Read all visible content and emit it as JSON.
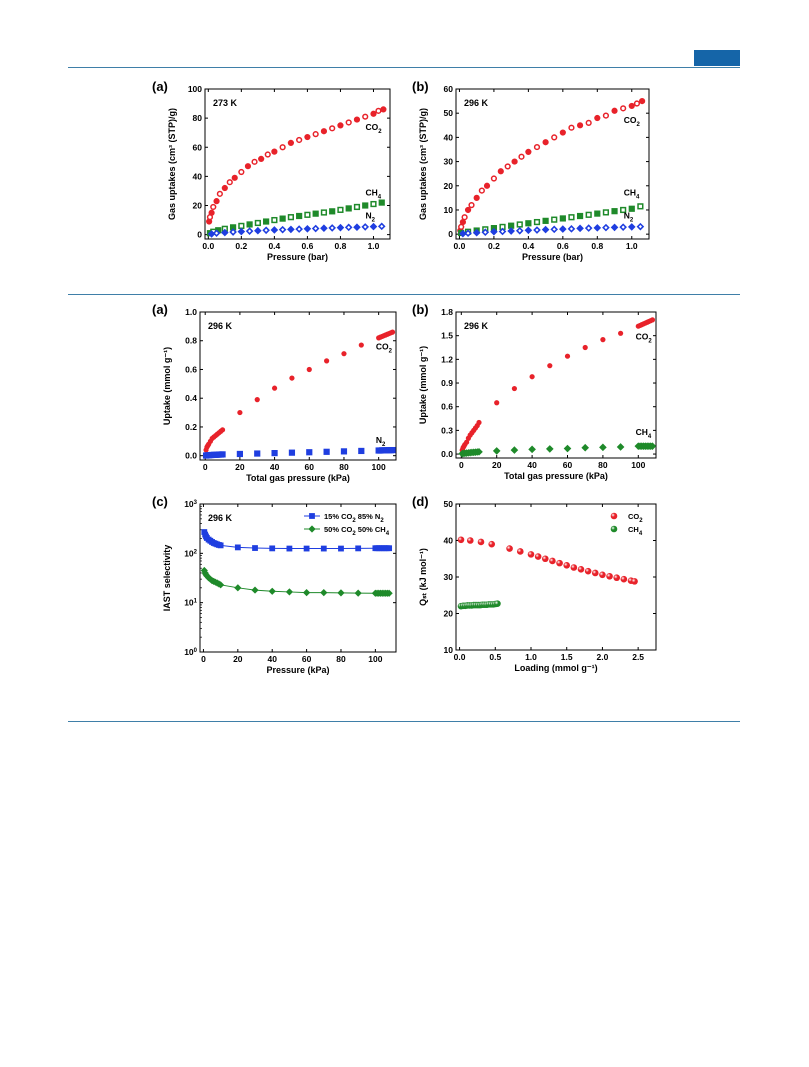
{
  "page": {
    "accent_color": "#1565a8",
    "rule_color": "#3f7fa8"
  },
  "colors": {
    "co2": "#e8222a",
    "ch4": "#1f8a2a",
    "n2": "#1f3ee0"
  },
  "chart_data": [
    {
      "id": "fig1a",
      "type": "scatter",
      "panel_label": "(a)",
      "annotation": "273 K",
      "xlabel": "Pressure (bar)",
      "ylabel": "Gas uptakes (cm³ (STP)/g)",
      "xlim": [
        -0.02,
        1.1
      ],
      "ylim": [
        -3,
        100
      ],
      "xticks": [
        0.0,
        0.2,
        0.4,
        0.6,
        0.8,
        1.0
      ],
      "yticks": [
        0,
        20,
        40,
        60,
        80,
        100
      ],
      "xtick_labels": [
        "0.0",
        "0.2",
        "0.4",
        "0.6",
        "0.8",
        "1.0"
      ],
      "ytick_labels": [
        "0",
        "20",
        "40",
        "60",
        "80",
        "100"
      ],
      "series": [
        {
          "name": "CO₂",
          "key": "co2",
          "style": "circle-half",
          "label_at": [
            1.0,
            72
          ],
          "x": [
            0.005,
            0.01,
            0.02,
            0.03,
            0.05,
            0.07,
            0.1,
            0.13,
            0.16,
            0.2,
            0.24,
            0.28,
            0.32,
            0.36,
            0.4,
            0.45,
            0.5,
            0.55,
            0.6,
            0.65,
            0.7,
            0.75,
            0.8,
            0.85,
            0.9,
            0.95,
            1.0,
            1.03,
            1.06
          ],
          "y": [
            9,
            12,
            15,
            19,
            23,
            28,
            32,
            36,
            39,
            43,
            47,
            50,
            52,
            55,
            57,
            60,
            63,
            65,
            67,
            69,
            71,
            73,
            75,
            77,
            79,
            81,
            83,
            85,
            86
          ]
        },
        {
          "name": "CH₄",
          "key": "ch4",
          "style": "square-half",
          "label_at": [
            1.0,
            27
          ],
          "x": [
            0.01,
            0.03,
            0.06,
            0.1,
            0.15,
            0.2,
            0.25,
            0.3,
            0.35,
            0.4,
            0.45,
            0.5,
            0.55,
            0.6,
            0.65,
            0.7,
            0.75,
            0.8,
            0.85,
            0.9,
            0.95,
            1.0,
            1.05
          ],
          "y": [
            1,
            2,
            3,
            4,
            5,
            6,
            7,
            8,
            9,
            10,
            11,
            12,
            12.8,
            13.6,
            14.4,
            15.2,
            16,
            17,
            18,
            19,
            20,
            21,
            22
          ]
        },
        {
          "name": "N₂",
          "key": "n2",
          "style": "diamond-half",
          "label_at": [
            1.0,
            11
          ],
          "x": [
            0.02,
            0.05,
            0.1,
            0.15,
            0.2,
            0.25,
            0.3,
            0.35,
            0.4,
            0.45,
            0.5,
            0.55,
            0.6,
            0.65,
            0.7,
            0.75,
            0.8,
            0.85,
            0.9,
            0.95,
            1.0,
            1.05
          ],
          "y": [
            0.5,
            1,
            1.4,
            1.8,
            2.1,
            2.4,
            2.7,
            3,
            3.2,
            3.4,
            3.6,
            3.8,
            4,
            4.2,
            4.4,
            4.6,
            4.8,
            5,
            5.1,
            5.3,
            5.5,
            5.7
          ]
        }
      ]
    },
    {
      "id": "fig1b",
      "type": "scatter",
      "panel_label": "(b)",
      "annotation": "296 K",
      "xlabel": "Pressure (bar)",
      "ylabel": "Gas uptakes (cm³ (STP)/g)",
      "xlim": [
        -0.02,
        1.1
      ],
      "ylim": [
        -2,
        60
      ],
      "xticks": [
        0.0,
        0.2,
        0.4,
        0.6,
        0.8,
        1.0
      ],
      "yticks": [
        0,
        10,
        20,
        30,
        40,
        50,
        60
      ],
      "xtick_labels": [
        "0.0",
        "0.2",
        "0.4",
        "0.6",
        "0.8",
        "1.0"
      ],
      "ytick_labels": [
        "0",
        "10",
        "20",
        "30",
        "40",
        "50",
        "60"
      ],
      "series": [
        {
          "name": "CO₂",
          "key": "co2",
          "style": "circle-half",
          "label_at": [
            1.0,
            46
          ],
          "x": [
            0.005,
            0.01,
            0.02,
            0.03,
            0.05,
            0.07,
            0.1,
            0.13,
            0.16,
            0.2,
            0.24,
            0.28,
            0.32,
            0.36,
            0.4,
            0.45,
            0.5,
            0.55,
            0.6,
            0.65,
            0.7,
            0.75,
            0.8,
            0.85,
            0.9,
            0.95,
            1.0,
            1.03,
            1.06
          ],
          "y": [
            1.5,
            3,
            5,
            7,
            10,
            12,
            15,
            18,
            20,
            23,
            26,
            28,
            30,
            32,
            34,
            36,
            38,
            40,
            42,
            44,
            45,
            46,
            48,
            49,
            51,
            52,
            53,
            54,
            55
          ]
        },
        {
          "name": "CH₄",
          "key": "ch4",
          "style": "square-half",
          "label_at": [
            1.0,
            16
          ],
          "x": [
            0.01,
            0.05,
            0.1,
            0.15,
            0.2,
            0.25,
            0.3,
            0.35,
            0.4,
            0.45,
            0.5,
            0.55,
            0.6,
            0.65,
            0.7,
            0.75,
            0.8,
            0.85,
            0.9,
            0.95,
            1.0,
            1.05
          ],
          "y": [
            0.5,
            1,
            1.5,
            2,
            2.5,
            3,
            3.5,
            4,
            4.5,
            5,
            5.5,
            6,
            6.5,
            7,
            7.5,
            8,
            8.5,
            9,
            9.5,
            10,
            10.5,
            11.5
          ]
        },
        {
          "name": "N₂",
          "key": "n2",
          "style": "diamond-half",
          "label_at": [
            1.0,
            6.5
          ],
          "x": [
            0.02,
            0.05,
            0.1,
            0.15,
            0.2,
            0.25,
            0.3,
            0.35,
            0.4,
            0.45,
            0.5,
            0.55,
            0.6,
            0.65,
            0.7,
            0.75,
            0.8,
            0.85,
            0.9,
            0.95,
            1.0,
            1.05
          ],
          "y": [
            0.2,
            0.4,
            0.6,
            0.8,
            1,
            1.1,
            1.3,
            1.4,
            1.6,
            1.7,
            1.9,
            2,
            2.1,
            2.2,
            2.4,
            2.5,
            2.6,
            2.7,
            2.8,
            2.9,
            3,
            3.1
          ]
        }
      ]
    },
    {
      "id": "fig2a",
      "type": "scatter",
      "panel_label": "(a)",
      "annotation": "296 K",
      "xlabel": "Total gas pressure (kPa)",
      "ylabel": "Uptake (mmol g⁻¹)",
      "xlim": [
        -3,
        110
      ],
      "ylim": [
        -0.03,
        1.0
      ],
      "xticks": [
        0,
        20,
        40,
        60,
        80,
        100
      ],
      "yticks": [
        0.0,
        0.2,
        0.4,
        0.6,
        0.8,
        1.0
      ],
      "xtick_labels": [
        "0",
        "20",
        "40",
        "60",
        "80",
        "100"
      ],
      "ytick_labels": [
        "0.0",
        "0.2",
        "0.4",
        "0.6",
        "0.8",
        "1.0"
      ],
      "series": [
        {
          "name": "CO₂",
          "key": "co2",
          "style": "circle",
          "label_at": [
            103,
            0.74
          ],
          "x": [
            0.5,
            1,
            1.5,
            2,
            3,
            4,
            5,
            6,
            7,
            8,
            9,
            10,
            20,
            30,
            40,
            50,
            60,
            70,
            80,
            90,
            100,
            101,
            102,
            103,
            104,
            105,
            106,
            107,
            108
          ],
          "y": [
            0.04,
            0.06,
            0.07,
            0.08,
            0.1,
            0.12,
            0.13,
            0.14,
            0.15,
            0.16,
            0.17,
            0.18,
            0.3,
            0.39,
            0.47,
            0.54,
            0.6,
            0.66,
            0.71,
            0.77,
            0.82,
            0.825,
            0.83,
            0.835,
            0.84,
            0.845,
            0.85,
            0.855,
            0.86
          ]
        },
        {
          "name": "N₂",
          "key": "n2",
          "style": "square",
          "label_at": [
            103,
            0.09
          ],
          "x": [
            0.5,
            1,
            2,
            3,
            4,
            5,
            6,
            7,
            8,
            9,
            10,
            20,
            30,
            40,
            50,
            60,
            70,
            80,
            90,
            100,
            101,
            102,
            103,
            104,
            105,
            106,
            107,
            108
          ],
          "y": [
            0.001,
            0.002,
            0.003,
            0.004,
            0.005,
            0.006,
            0.006,
            0.007,
            0.008,
            0.008,
            0.009,
            0.012,
            0.015,
            0.018,
            0.021,
            0.024,
            0.027,
            0.03,
            0.033,
            0.036,
            0.036,
            0.037,
            0.037,
            0.037,
            0.038,
            0.038,
            0.038,
            0.039
          ]
        }
      ]
    },
    {
      "id": "fig2b",
      "type": "scatter",
      "panel_label": "(b)",
      "annotation": "296 K",
      "xlabel": "Total gas pressure (kPa)",
      "ylabel": "Uptake (mmol g⁻¹)",
      "xlim": [
        -3,
        110
      ],
      "ylim": [
        -0.05,
        1.8
      ],
      "xticks": [
        0,
        20,
        40,
        60,
        80,
        100
      ],
      "yticks": [
        0.0,
        0.3,
        0.6,
        0.9,
        1.2,
        1.5,
        1.8
      ],
      "xtick_labels": [
        "0",
        "20",
        "40",
        "60",
        "80",
        "100"
      ],
      "ytick_labels": [
        "0.0",
        "0.3",
        "0.6",
        "0.9",
        "1.2",
        "1.5",
        "1.8"
      ],
      "series": [
        {
          "name": "CO₂",
          "key": "co2",
          "style": "circle",
          "label_at": [
            103,
            1.45
          ],
          "x": [
            0.5,
            1,
            1.5,
            2,
            3,
            4,
            5,
            6,
            7,
            8,
            9,
            10,
            20,
            30,
            40,
            50,
            60,
            70,
            80,
            90,
            100,
            101,
            102,
            103,
            104,
            105,
            106,
            107,
            108
          ],
          "y": [
            0.05,
            0.08,
            0.1,
            0.12,
            0.15,
            0.2,
            0.24,
            0.27,
            0.3,
            0.33,
            0.36,
            0.4,
            0.65,
            0.83,
            0.98,
            1.12,
            1.24,
            1.35,
            1.45,
            1.53,
            1.62,
            1.63,
            1.64,
            1.65,
            1.66,
            1.67,
            1.68,
            1.69,
            1.7
          ]
        },
        {
          "name": "CH₄",
          "key": "ch4",
          "style": "diamond",
          "label_at": [
            103,
            0.24
          ],
          "x": [
            0.5,
            1,
            2,
            3,
            4,
            5,
            6,
            7,
            8,
            9,
            10,
            20,
            30,
            40,
            50,
            60,
            70,
            80,
            90,
            100,
            101,
            102,
            103,
            104,
            105,
            106,
            107,
            108
          ],
          "y": [
            0.005,
            0.007,
            0.01,
            0.012,
            0.015,
            0.018,
            0.02,
            0.022,
            0.024,
            0.026,
            0.028,
            0.04,
            0.05,
            0.06,
            0.065,
            0.07,
            0.08,
            0.085,
            0.09,
            0.1,
            0.1,
            0.1,
            0.1,
            0.1,
            0.1,
            0.1,
            0.1,
            0.1
          ]
        }
      ]
    },
    {
      "id": "fig2c",
      "type": "line",
      "panel_label": "(c)",
      "annotation": "296 K",
      "xlabel": "Pressure (kPa)",
      "ylabel": "IAST selectivity",
      "xlim": [
        -2,
        112
      ],
      "ylim": [
        0,
        3
      ],
      "log_y": true,
      "xticks": [
        0,
        20,
        40,
        60,
        80,
        100
      ],
      "yticks": [
        0,
        1,
        2,
        3
      ],
      "xtick_labels": [
        "0",
        "20",
        "40",
        "60",
        "80",
        "100"
      ],
      "ytick_labels": [
        "10⁰",
        "10¹",
        "10²",
        "10³"
      ],
      "legend_position": "top-right",
      "series": [
        {
          "name": "15% CO₂ 85% N₂",
          "key": "n2",
          "style": "square-line",
          "x": [
            0.5,
            1,
            1.5,
            2,
            3,
            4,
            5,
            6,
            7,
            8,
            9,
            10,
            20,
            30,
            40,
            50,
            60,
            70,
            80,
            90,
            100,
            101,
            102,
            103,
            104,
            105,
            106,
            107,
            108
          ],
          "y": [
            270,
            240,
            220,
            205,
            190,
            180,
            170,
            162,
            157,
            152,
            148,
            145,
            132,
            128,
            126,
            125,
            125,
            125,
            125,
            126,
            127,
            127,
            127,
            127,
            127,
            127,
            127,
            127,
            127
          ]
        },
        {
          "name": "50% CO₂ 50% CH₄",
          "key": "ch4",
          "style": "diamond-line",
          "x": [
            0.5,
            1,
            1.5,
            2,
            3,
            4,
            5,
            6,
            7,
            8,
            9,
            10,
            20,
            30,
            40,
            50,
            60,
            70,
            80,
            90,
            100,
            101,
            102,
            103,
            104,
            105,
            106,
            107,
            108
          ],
          "y": [
            45,
            40,
            37,
            35,
            32,
            30,
            28,
            27,
            26,
            25,
            24,
            23,
            20,
            18,
            17,
            16.5,
            16,
            16,
            15.8,
            15.6,
            15.5,
            15.5,
            15.5,
            15.5,
            15.5,
            15.5,
            15.5,
            15.5,
            15.5
          ]
        }
      ]
    },
    {
      "id": "fig2d",
      "type": "scatter",
      "panel_label": "(d)",
      "xlabel": "Loading (mmol g⁻¹)",
      "ylabel": "Qₛₜ (kJ mol⁻¹)",
      "xlim": [
        -0.05,
        2.75
      ],
      "ylim": [
        10,
        50
      ],
      "xticks": [
        0.0,
        0.5,
        1.0,
        1.5,
        2.0,
        2.5
      ],
      "yticks": [
        10,
        20,
        30,
        40,
        50
      ],
      "xtick_labels": [
        "0.0",
        "0.5",
        "1.0",
        "1.5",
        "2.0",
        "2.5"
      ],
      "ytick_labels": [
        "10",
        "20",
        "30",
        "40",
        "50"
      ],
      "legend_position": "top-right",
      "series": [
        {
          "name": "CO₂",
          "key": "co2",
          "style": "ball",
          "x": [
            0.02,
            0.15,
            0.3,
            0.45,
            0.7,
            0.85,
            1.0,
            1.1,
            1.2,
            1.3,
            1.4,
            1.5,
            1.6,
            1.7,
            1.8,
            1.9,
            2.0,
            2.1,
            2.2,
            2.3,
            2.4,
            2.45
          ],
          "y": [
            40.2,
            40,
            39.6,
            39,
            37.8,
            37,
            36.2,
            35.6,
            35,
            34.4,
            33.8,
            33.2,
            32.6,
            32.1,
            31.6,
            31.1,
            30.6,
            30.2,
            29.8,
            29.4,
            29,
            28.8
          ]
        },
        {
          "name": "CH₄",
          "key": "ch4",
          "style": "ball",
          "x": [
            0.02,
            0.05,
            0.08,
            0.11,
            0.14,
            0.17,
            0.2,
            0.23,
            0.26,
            0.29,
            0.32,
            0.35,
            0.38,
            0.41,
            0.44,
            0.47,
            0.5,
            0.53
          ],
          "y": [
            22.0,
            22.1,
            22.1,
            22.2,
            22.2,
            22.2,
            22.3,
            22.3,
            22.3,
            22.3,
            22.4,
            22.4,
            22.4,
            22.5,
            22.5,
            22.5,
            22.6,
            22.7
          ]
        }
      ]
    }
  ]
}
